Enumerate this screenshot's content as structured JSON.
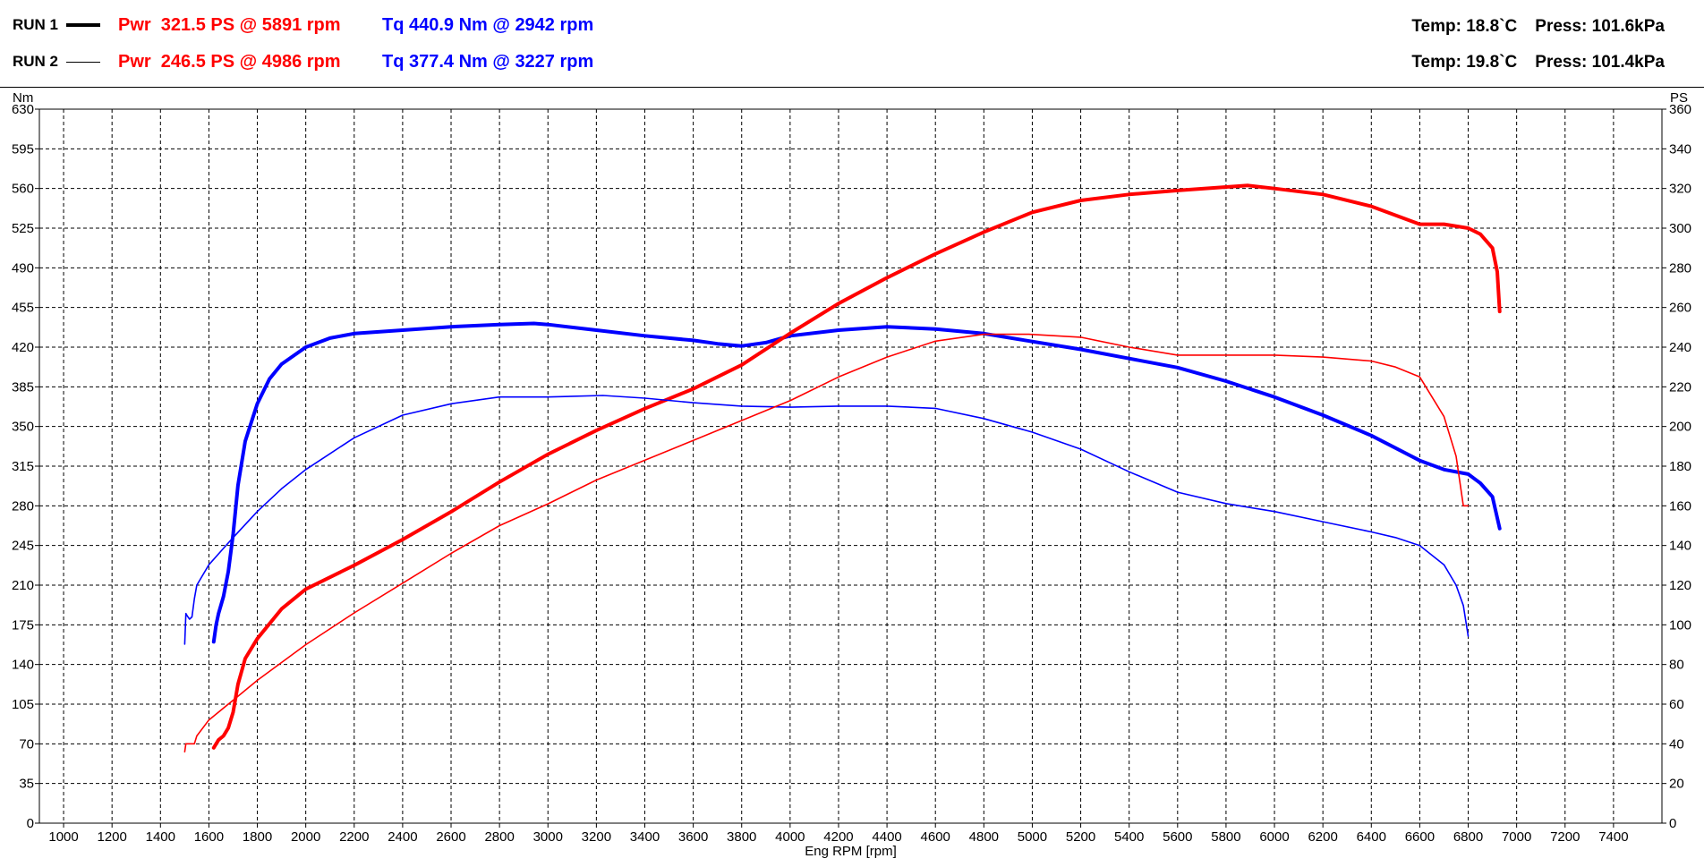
{
  "runs": [
    {
      "label": "RUN 1",
      "power": "Pwr  321.5 PS @ 5891 rpm",
      "torque": "Tq 440.9 Nm @ 2942 rpm",
      "temp": "Temp: 18.8`C",
      "press": "Press: 101.6kPa"
    },
    {
      "label": "RUN 2",
      "power": "Pwr  246.5 PS @ 4986 rpm",
      "torque": "Tq 377.4 Nm @ 3227 rpm",
      "temp": "Temp: 19.8`C",
      "press": "Press: 101.4kPa"
    }
  ],
  "colors": {
    "power": "#ff0000",
    "torque": "#0000ff",
    "grid": "#000000"
  },
  "chart_data": {
    "type": "line",
    "xlabel": "Eng RPM [rpm]",
    "ylabel": "Nm",
    "y2label": "PS",
    "xlim": [
      900,
      7600
    ],
    "xticks": [
      1000,
      1200,
      1400,
      1600,
      1800,
      2000,
      2200,
      2400,
      2600,
      2800,
      3000,
      3200,
      3400,
      3600,
      3800,
      4000,
      4200,
      4400,
      4600,
      4800,
      5000,
      5200,
      5400,
      5600,
      5800,
      6000,
      6200,
      6400,
      6600,
      6800,
      7000,
      7200,
      7400
    ],
    "ylim": [
      0,
      630
    ],
    "yticks": [
      0,
      35,
      70,
      105,
      140,
      175,
      210,
      245,
      280,
      315,
      350,
      385,
      420,
      455,
      490,
      525,
      560,
      595,
      630
    ],
    "y2lim": [
      0,
      360
    ],
    "y2ticks": [
      0,
      20,
      40,
      60,
      80,
      100,
      120,
      140,
      160,
      180,
      200,
      220,
      240,
      260,
      280,
      300,
      320,
      340,
      360
    ],
    "grid": true,
    "series": [
      {
        "name": "RUN 1",
        "quantity": "torque",
        "axis": "left",
        "weight": "thick",
        "x": [
          1620,
          1630,
          1640,
          1660,
          1680,
          1700,
          1720,
          1750,
          1800,
          1850,
          1900,
          2000,
          2100,
          2200,
          2400,
          2600,
          2800,
          2942,
          3000,
          3200,
          3400,
          3600,
          3700,
          3800,
          3900,
          4000,
          4200,
          4400,
          4600,
          4800,
          5000,
          5200,
          5400,
          5600,
          5800,
          6000,
          6200,
          6400,
          6600,
          6700,
          6800,
          6850,
          6900,
          6930
        ],
        "y": [
          160,
          175,
          185,
          200,
          222,
          255,
          298,
          337,
          370,
          392,
          405,
          420,
          428,
          432,
          435,
          438,
          440,
          440.9,
          440,
          435,
          430,
          426,
          423,
          421,
          424,
          430,
          435,
          438,
          436,
          432,
          425,
          418,
          410,
          402,
          390,
          376,
          360,
          342,
          320,
          312,
          308,
          300,
          288,
          260
        ]
      },
      {
        "name": "RUN 1",
        "quantity": "power",
        "axis": "right",
        "weight": "thick",
        "x": [
          1620,
          1640,
          1660,
          1680,
          1700,
          1720,
          1750,
          1800,
          1900,
          2000,
          2200,
          2400,
          2600,
          2800,
          3000,
          3200,
          3400,
          3600,
          3800,
          4000,
          4200,
          4400,
          4600,
          4800,
          5000,
          5200,
          5400,
          5600,
          5891,
          6000,
          6200,
          6400,
          6600,
          6700,
          6800,
          6850,
          6900,
          6920,
          6930
        ],
        "y": [
          38,
          42,
          44,
          48,
          56,
          70,
          83,
          93,
          108,
          118,
          130,
          143,
          157,
          172,
          186,
          198,
          209,
          219,
          231,
          247,
          262,
          275,
          287,
          298,
          308,
          314,
          317,
          319,
          321.5,
          320,
          317,
          311,
          302,
          302,
          300,
          297,
          290,
          278,
          258
        ]
      },
      {
        "name": "RUN 2",
        "quantity": "torque",
        "axis": "left",
        "weight": "thin",
        "x": [
          1500,
          1505,
          1510,
          1520,
          1530,
          1540,
          1550,
          1600,
          1650,
          1700,
          1800,
          1900,
          2000,
          2200,
          2400,
          2600,
          2800,
          3000,
          3227,
          3400,
          3600,
          3800,
          4000,
          4200,
          4400,
          4600,
          4800,
          5000,
          5200,
          5400,
          5600,
          5800,
          6000,
          6200,
          6400,
          6500,
          6600,
          6700,
          6750,
          6780,
          6800
        ],
        "y": [
          158,
          185,
          183,
          180,
          182,
          198,
          210,
          228,
          240,
          252,
          275,
          295,
          312,
          340,
          360,
          370,
          376,
          376,
          377.4,
          375,
          371,
          368,
          367,
          368,
          368,
          366,
          357,
          345,
          330,
          310,
          292,
          282,
          275,
          266,
          257,
          252,
          245,
          228,
          210,
          192,
          165
        ]
      },
      {
        "name": "RUN 2",
        "quantity": "power",
        "axis": "right",
        "weight": "thin",
        "x": [
          1500,
          1505,
          1530,
          1540,
          1550,
          1600,
          1700,
          1800,
          2000,
          2200,
          2400,
          2600,
          2800,
          3000,
          3200,
          3400,
          3600,
          3800,
          4000,
          4200,
          4400,
          4600,
          4800,
          4986,
          5200,
          5400,
          5600,
          5800,
          6000,
          6200,
          6400,
          6500,
          6600,
          6700,
          6750,
          6780,
          6800
        ],
        "y": [
          36,
          40,
          40,
          40,
          44,
          52,
          62,
          72,
          90,
          106,
          121,
          136,
          150,
          161,
          173,
          183,
          193,
          203,
          213,
          225,
          235,
          243,
          246.5,
          246.5,
          245,
          240,
          236,
          236,
          236,
          235,
          233,
          230,
          225,
          205,
          185,
          160,
          160
        ]
      }
    ]
  }
}
